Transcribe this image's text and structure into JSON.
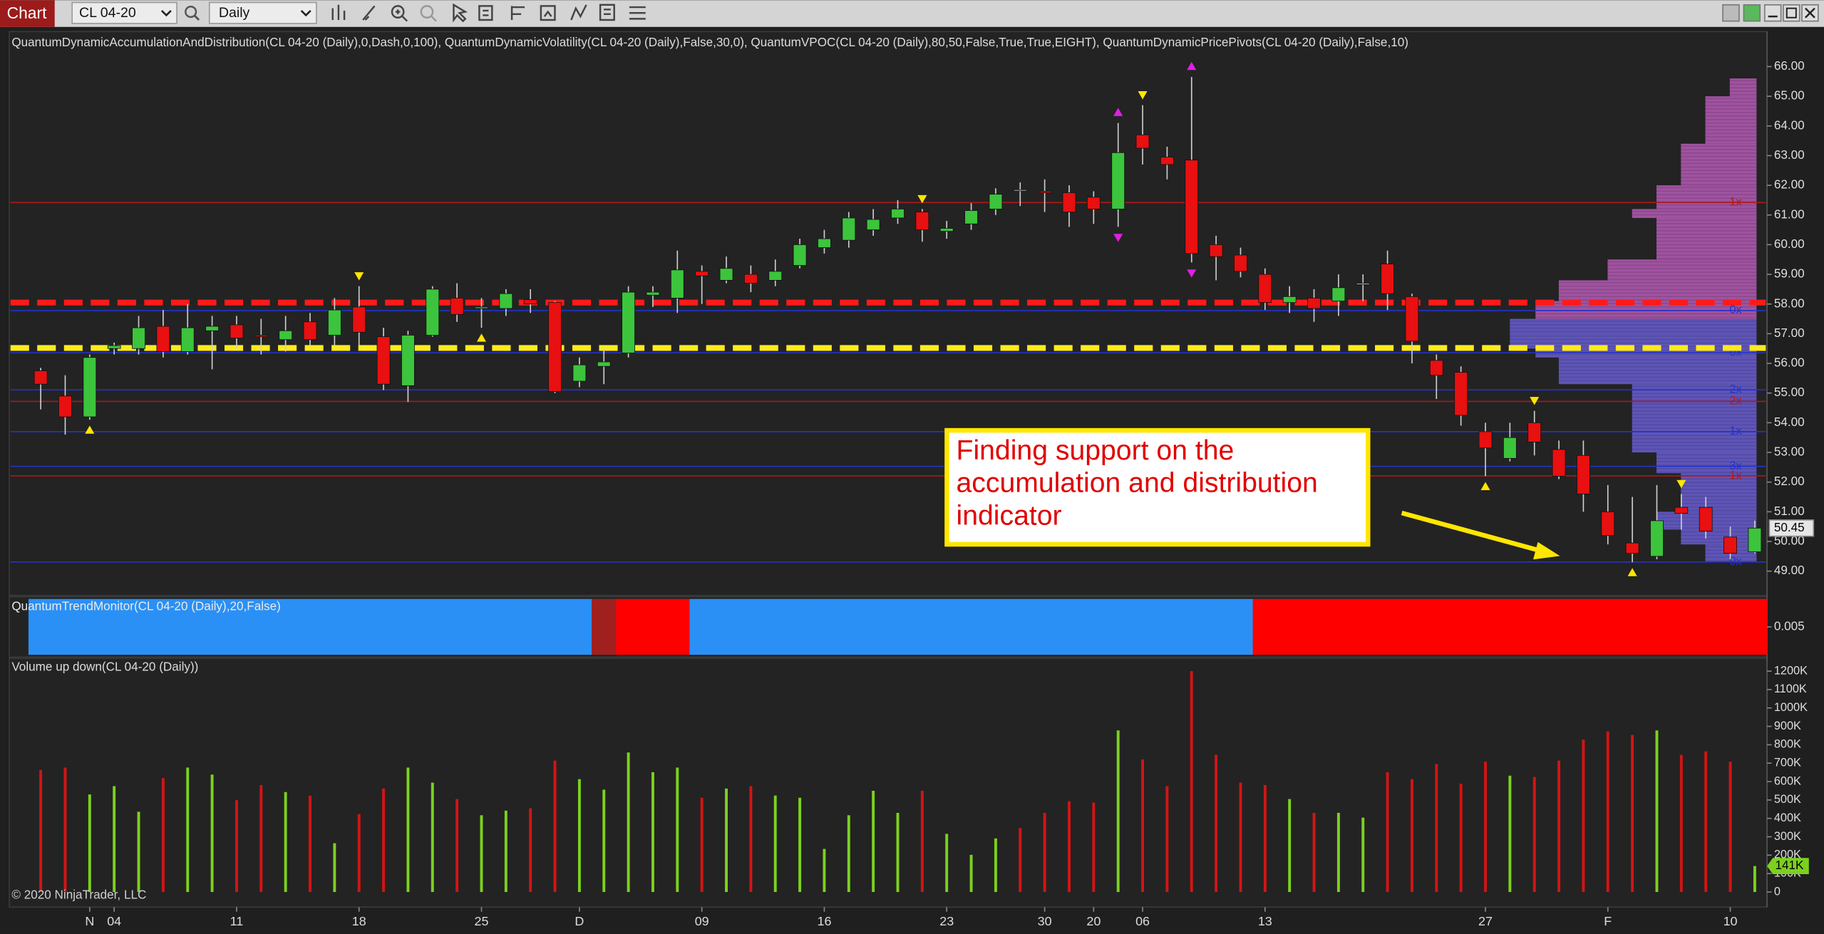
{
  "header": {
    "tab": "Chart",
    "instrument": "CL 04-20",
    "interval": "Daily"
  },
  "chart_data": [
    {
      "type": "candlestick",
      "title": "QuantumDynamicAccumulationAndDistribution(CL 04-20 (Daily),0,Dash,0,100), QuantumDynamicVolatility(CL 04-20 (Daily),False,30,0), QuantumVPOC(CL 04-20 (Daily),80,50,False,True,True,EIGHT), QuantumDynamicPricePivots(CL 04-20 (Daily),False,10)",
      "annotation": "Finding support on the accumulation and distribution indicator",
      "categories": [
        null,
        null,
        "N",
        "04",
        null,
        null,
        null,
        null,
        "11",
        null,
        null,
        null,
        null,
        "18",
        null,
        null,
        null,
        null,
        "25",
        null,
        null,
        null,
        "D",
        null,
        null,
        null,
        null,
        "09",
        null,
        null,
        null,
        null,
        "16",
        null,
        null,
        null,
        null,
        "23",
        null,
        null,
        null,
        "30",
        null,
        "20",
        null,
        "06",
        null,
        null,
        null,
        null,
        "13",
        null,
        null,
        null,
        null,
        null,
        null,
        null,
        null,
        "27",
        null,
        null,
        null,
        null,
        "F",
        null,
        null,
        null,
        null,
        "10",
        null
      ],
      "open": [
        55.75,
        54.9,
        54.2,
        56.5,
        56.5,
        57.25,
        56.4,
        57.1,
        57.3,
        56.95,
        56.8,
        57.4,
        56.95,
        57.9,
        56.9,
        55.25,
        56.95,
        58.2,
        57.85,
        57.85,
        58.15,
        58.05,
        55.4,
        55.9,
        56.35,
        58.3,
        58.2,
        59.1,
        58.8,
        59.0,
        58.8,
        59.3,
        59.9,
        60.15,
        60.5,
        60.9,
        61.1,
        60.45,
        60.7,
        61.2,
        61.85,
        61.8,
        61.75,
        61.6,
        61.2,
        63.7,
        62.95,
        62.85,
        60.0,
        59.65,
        59.0,
        58.05,
        58.2,
        58.1,
        58.7,
        59.35,
        58.25,
        56.1,
        55.7,
        53.7,
        52.8,
        54.0,
        53.1,
        52.9,
        51.0,
        49.95,
        49.5,
        51.15,
        51.15,
        50.15,
        49.65
      ],
      "high": [
        55.85,
        55.6,
        56.3,
        56.7,
        57.6,
        57.8,
        58.0,
        57.6,
        57.6,
        57.5,
        57.6,
        57.7,
        58.2,
        58.6,
        57.2,
        57.1,
        58.6,
        58.7,
        58.2,
        58.5,
        58.5,
        58.1,
        56.2,
        56.5,
        58.6,
        58.6,
        59.8,
        59.3,
        59.6,
        59.3,
        59.5,
        60.2,
        60.5,
        61.1,
        61.2,
        61.5,
        61.2,
        60.8,
        61.4,
        61.9,
        62.1,
        62.2,
        62.0,
        61.8,
        64.1,
        64.7,
        63.3,
        65.65,
        60.3,
        59.9,
        59.2,
        58.6,
        58.5,
        59.0,
        59.0,
        59.8,
        58.35,
        56.3,
        55.9,
        54.0,
        54.0,
        54.4,
        53.4,
        53.4,
        51.9,
        51.5,
        51.9,
        51.6,
        51.5,
        50.5,
        50.7
      ],
      "low": [
        54.45,
        53.6,
        54.1,
        56.3,
        56.3,
        56.2,
        56.3,
        55.8,
        56.5,
        56.3,
        56.4,
        56.6,
        56.6,
        56.6,
        55.1,
        54.7,
        56.9,
        57.4,
        57.2,
        57.6,
        57.7,
        55.0,
        55.2,
        55.3,
        56.2,
        57.9,
        57.7,
        58.0,
        58.7,
        58.4,
        58.6,
        59.2,
        59.7,
        59.9,
        60.3,
        60.7,
        60.1,
        60.2,
        60.5,
        61.0,
        61.3,
        61.1,
        60.6,
        60.7,
        60.6,
        62.7,
        62.2,
        59.4,
        58.8,
        58.9,
        57.8,
        57.7,
        57.4,
        57.6,
        58.1,
        57.8,
        56.0,
        54.8,
        53.9,
        52.2,
        52.7,
        52.9,
        52.1,
        51.0,
        49.9,
        49.3,
        49.4,
        50.4,
        50.1,
        49.4,
        49.6
      ],
      "close": [
        55.3,
        54.2,
        56.2,
        56.6,
        57.2,
        56.4,
        57.2,
        57.25,
        56.85,
        56.9,
        57.1,
        56.8,
        57.8,
        57.05,
        55.3,
        56.95,
        58.5,
        57.65,
        57.9,
        58.35,
        58.0,
        55.05,
        55.95,
        56.05,
        58.4,
        58.4,
        59.15,
        58.95,
        59.2,
        58.7,
        59.1,
        60.0,
        60.2,
        60.9,
        60.85,
        61.2,
        60.5,
        60.55,
        61.15,
        61.7,
        61.85,
        61.75,
        61.1,
        61.2,
        63.1,
        63.25,
        62.7,
        59.7,
        59.6,
        59.1,
        58.05,
        58.25,
        57.85,
        58.55,
        58.7,
        58.35,
        56.75,
        55.6,
        54.25,
        53.15,
        53.5,
        53.35,
        52.2,
        51.6,
        50.2,
        49.6,
        50.7,
        50.95,
        50.35,
        49.6,
        50.45
      ],
      "up_color": "#3cc43c",
      "down_color": "#e81010",
      "ylim": [
        48.18,
        67.18
      ],
      "yticks": [
        {
          "value": 49,
          "label": "49.00"
        },
        {
          "value": 50,
          "label": "50.00"
        },
        {
          "value": 51,
          "label": "51.00"
        },
        {
          "value": 52,
          "label": "52.00"
        },
        {
          "value": 53,
          "label": "53.00"
        },
        {
          "value": 54,
          "label": "54.00"
        },
        {
          "value": 55,
          "label": "55.00"
        },
        {
          "value": 56,
          "label": "56.00"
        },
        {
          "value": 57,
          "label": "57.00"
        },
        {
          "value": 58,
          "label": "58.00"
        },
        {
          "value": 59,
          "label": "59.00"
        },
        {
          "value": 60,
          "label": "60.00"
        },
        {
          "value": 61,
          "label": "61.00"
        },
        {
          "value": 62,
          "label": "62.00"
        },
        {
          "value": 63,
          "label": "63.00"
        },
        {
          "value": 64,
          "label": "64.00"
        },
        {
          "value": 65,
          "label": "65.00"
        },
        {
          "value": 66,
          "label": "66.00"
        }
      ],
      "levels": [
        {
          "value": 61.42,
          "color": "#b01818",
          "label": "1x"
        },
        {
          "value": 57.78,
          "color": "#2233cc",
          "label": "0x"
        },
        {
          "value": 56.36,
          "color": "#2233cc",
          "label": "0x"
        },
        {
          "value": 55.11,
          "color": "#2233cc",
          "label": "2x"
        },
        {
          "value": 54.72,
          "color": "#b01818",
          "label": "2x"
        },
        {
          "value": 53.7,
          "color": "#2233cc",
          "label": "1x"
        },
        {
          "value": 52.53,
          "color": "#2233cc",
          "label": "3x"
        },
        {
          "value": 52.21,
          "color": "#b01818",
          "label": "1x"
        },
        {
          "value": 49.31,
          "color": "#2233cc",
          "label": "0x"
        },
        {
          "value": 58.05,
          "color": "#ff1a1a",
          "style": "dash"
        },
        {
          "value": 56.52,
          "color": "#ffeb1a",
          "style": "dash"
        }
      ],
      "volume_profile": [
        {
          "low": 65.0,
          "high": 65.6,
          "size": 23,
          "color": "#b65cb6"
        },
        {
          "low": 63.4,
          "high": 65.0,
          "size": 44,
          "color": "#b65cb6"
        },
        {
          "low": 62.0,
          "high": 63.4,
          "size": 65,
          "color": "#b65cb6"
        },
        {
          "low": 61.2,
          "high": 62.0,
          "size": 86,
          "color": "#b65cb6"
        },
        {
          "low": 60.9,
          "high": 61.2,
          "size": 107,
          "color": "#b65cb6"
        },
        {
          "low": 59.5,
          "high": 60.9,
          "size": 86,
          "color": "#b65cb6"
        },
        {
          "low": 58.8,
          "high": 59.5,
          "size": 128,
          "color": "#b65cb6"
        },
        {
          "low": 58.1,
          "high": 58.8,
          "size": 170,
          "color": "#b65cb6"
        },
        {
          "low": 57.5,
          "high": 58.1,
          "size": 190,
          "color": "#b65cb6"
        },
        {
          "low": 57.0,
          "high": 57.5,
          "size": 212,
          "color": "#6a5ed2"
        },
        {
          "low": 56.5,
          "high": 57.0,
          "size": 212,
          "color": "#6a5ed2"
        },
        {
          "low": 56.2,
          "high": 56.5,
          "size": 190,
          "color": "#6a5ed2"
        },
        {
          "low": 55.3,
          "high": 56.2,
          "size": 170,
          "color": "#6a5ed2"
        },
        {
          "low": 53.0,
          "high": 55.3,
          "size": 107,
          "color": "#6a5ed2"
        },
        {
          "low": 52.3,
          "high": 53.0,
          "size": 86,
          "color": "#6a5ed2"
        },
        {
          "low": 51.0,
          "high": 52.3,
          "size": 65,
          "color": "#6a5ed2"
        },
        {
          "low": 50.4,
          "high": 51.0,
          "size": 86,
          "color": "#6a5ed2"
        },
        {
          "low": 49.9,
          "high": 50.4,
          "size": 65,
          "color": "#6a5ed2"
        },
        {
          "low": 49.3,
          "high": 49.9,
          "size": 44,
          "color": "#6a5ed2"
        }
      ],
      "pivots": [
        {
          "index": 2,
          "position": "below",
          "shape": "up",
          "color": "#ffe600"
        },
        {
          "index": 13,
          "position": "above",
          "shape": "down",
          "color": "#ffe600"
        },
        {
          "index": 18,
          "position": "below",
          "shape": "up",
          "color": "#ffe600"
        },
        {
          "index": 36,
          "position": "above",
          "shape": "down",
          "color": "#ffe600"
        },
        {
          "index": 44,
          "position": "above",
          "shape": "up",
          "color": "#e020e0"
        },
        {
          "index": 44,
          "position": "below",
          "shape": "down",
          "color": "#e020e0"
        },
        {
          "index": 45,
          "position": "above",
          "shape": "down",
          "color": "#ffe600"
        },
        {
          "index": 47,
          "position": "above",
          "shape": "up",
          "color": "#e020e0"
        },
        {
          "index": 47,
          "position": "below",
          "shape": "down",
          "color": "#e020e0"
        },
        {
          "index": 59,
          "position": "below",
          "shape": "up",
          "color": "#ffe600"
        },
        {
          "index": 61,
          "position": "above",
          "shape": "down",
          "color": "#ffe600"
        },
        {
          "index": 65,
          "position": "below",
          "shape": "up",
          "color": "#ffe600"
        },
        {
          "index": 67,
          "position": "above",
          "shape": "down",
          "color": "#ffe600"
        }
      ]
    },
    {
      "type": "strip",
      "title": "QuantumTrendMonitor(CL 04-20 (Daily),20,False)",
      "colors": [
        "#2a90f5",
        "#2a90f5",
        "#2a90f5",
        "#2a90f5",
        "#2a90f5",
        "#2a90f5",
        "#2a90f5",
        "#2a90f5",
        "#2a90f5",
        "#2a90f5",
        "#2a90f5",
        "#2a90f5",
        "#2a90f5",
        "#2a90f5",
        "#2a90f5",
        "#2a90f5",
        "#2a90f5",
        "#2a90f5",
        "#2a90f5",
        "#2a90f5",
        "#2a90f5",
        "#2a90f5",
        "#2a90f5",
        "#a02020",
        "#ff0000",
        "#ff0000",
        "#ff0000",
        "#2a90f5",
        "#2a90f5",
        "#2a90f5",
        "#2a90f5",
        "#2a90f5",
        "#2a90f5",
        "#2a90f5",
        "#2a90f5",
        "#2a90f5",
        "#2a90f5",
        "#2a90f5",
        "#2a90f5",
        "#2a90f5",
        "#2a90f5",
        "#2a90f5",
        "#2a90f5",
        "#2a90f5",
        "#2a90f5",
        "#2a90f5",
        "#2a90f5",
        "#2a90f5",
        "#2a90f5",
        "#2a90f5",
        "#ff0000",
        "#ff0000",
        "#ff0000",
        "#ff0000",
        "#ff0000",
        "#ff0000",
        "#ff0000",
        "#ff0000",
        "#ff0000",
        "#ff0000",
        "#ff0000",
        "#ff0000",
        "#ff0000",
        "#ff0000",
        "#ff0000",
        "#ff0000",
        "#ff0000",
        "#ff0000",
        "#ff0000",
        "#ff0000",
        "#ff0000"
      ],
      "ylim": [
        0,
        0.01
      ],
      "yticks": [
        0.005
      ]
    },
    {
      "type": "bar",
      "title": "Volume up down(CL 04-20 (Daily))",
      "values": [
        663000,
        676000,
        530000,
        575000,
        436000,
        619000,
        676000,
        638000,
        499000,
        581000,
        543000,
        524000,
        265000,
        423000,
        562000,
        676000,
        594000,
        505000,
        417000,
        442000,
        455000,
        714000,
        613000,
        556000,
        758000,
        651000,
        676000,
        512000,
        562000,
        575000,
        524000,
        512000,
        234000,
        417000,
        550000,
        430000,
        550000,
        316000,
        202000,
        291000,
        347000,
        430000,
        493000,
        486000,
        878000,
        720000,
        575000,
        1200000,
        745000,
        594000,
        581000,
        505000,
        430000,
        430000,
        404000,
        651000,
        613000,
        695000,
        588000,
        708000,
        632000,
        625000,
        714000,
        828000,
        872000,
        853000,
        878000,
        745000,
        764000,
        708000,
        141000
      ],
      "colors": [
        "#d41414",
        "#d41414",
        "#7cd11f",
        "#7cd11f",
        "#7cd11f",
        "#d41414",
        "#7cd11f",
        "#7cd11f",
        "#d41414",
        "#d41414",
        "#7cd11f",
        "#d41414",
        "#7cd11f",
        "#d41414",
        "#d41414",
        "#7cd11f",
        "#7cd11f",
        "#d41414",
        "#7cd11f",
        "#7cd11f",
        "#d41414",
        "#d41414",
        "#7cd11f",
        "#7cd11f",
        "#7cd11f",
        "#7cd11f",
        "#7cd11f",
        "#d41414",
        "#7cd11f",
        "#d41414",
        "#7cd11f",
        "#7cd11f",
        "#7cd11f",
        "#7cd11f",
        "#7cd11f",
        "#7cd11f",
        "#d41414",
        "#7cd11f",
        "#7cd11f",
        "#7cd11f",
        "#d41414",
        "#d41414",
        "#d41414",
        "#d41414",
        "#7cd11f",
        "#d41414",
        "#d41414",
        "#d41414",
        "#d41414",
        "#d41414",
        "#d41414",
        "#7cd11f",
        "#d41414",
        "#7cd11f",
        "#7cd11f",
        "#d41414",
        "#d41414",
        "#d41414",
        "#d41414",
        "#d41414",
        "#7cd11f",
        "#d41414",
        "#d41414",
        "#d41414",
        "#d41414",
        "#d41414",
        "#7cd11f",
        "#d41414",
        "#d41414",
        "#d41414",
        "#7cd11f"
      ],
      "current_label": "141K",
      "ylim": [
        -82000,
        1270000
      ],
      "yticks": [
        0,
        {
          "value": 100000,
          "label": "100K"
        },
        {
          "value": 200000,
          "label": "200K"
        },
        {
          "value": 300000,
          "label": "300K"
        },
        {
          "value": 400000,
          "label": "400K"
        },
        {
          "value": 500000,
          "label": "500K"
        },
        {
          "value": 600000,
          "label": "600K"
        },
        {
          "value": 700000,
          "label": "700K"
        },
        {
          "value": 800000,
          "label": "800K"
        },
        {
          "value": 900000,
          "label": "900K"
        },
        {
          "value": 1000000,
          "label": "1000K"
        },
        {
          "value": 1100000,
          "label": "1100K"
        },
        {
          "value": 1200000,
          "label": "1200K"
        }
      ]
    }
  ],
  "footer": "© 2020 NinjaTrader, LLC"
}
